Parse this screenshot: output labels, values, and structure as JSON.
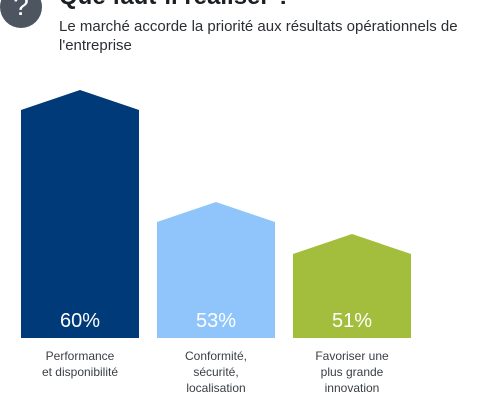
{
  "header": {
    "badge_symbol": "?",
    "title": "Que faut-il réaliser ?",
    "subtitle": "Le marché accorde la priorité aux résultats opérationnels de l'entreprise"
  },
  "chart_data": {
    "type": "bar",
    "categories": [
      [
        "Performance",
        "et disponibilité"
      ],
      [
        "Conformité,",
        "sécurité,",
        "localisation"
      ],
      [
        "Favoriser une",
        "plus grande",
        "innovation"
      ]
    ],
    "values": [
      60,
      53,
      51
    ],
    "value_labels": [
      "60%",
      "53%",
      "51%"
    ],
    "colors": [
      "#003a78",
      "#8fc5fb",
      "#a3be3c"
    ],
    "ylim": [
      44.5,
      61
    ],
    "grid": false,
    "legend": "none"
  }
}
